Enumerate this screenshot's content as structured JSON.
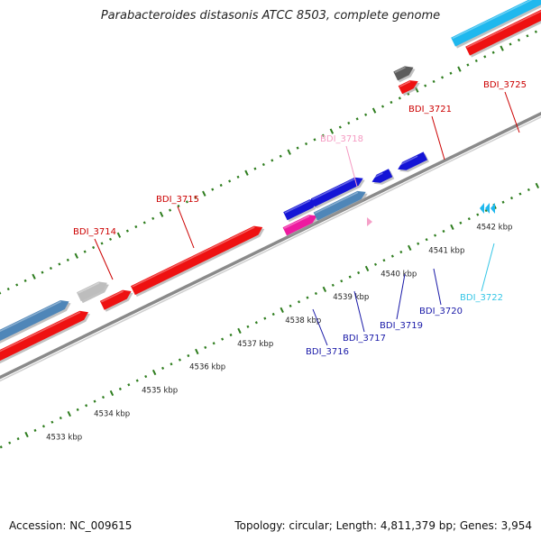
{
  "title": "Parabacteroides distasonis ATCC 8503, complete genome",
  "footer": {
    "accession": "Accession: NC_009615",
    "summary": "Topology: circular; Length: 4,811,379 bp; Genes: 3,954"
  },
  "scale": {
    "unit": "kbp",
    "ticks": [
      {
        "label": "4533 kbp"
      },
      {
        "label": "4534 kbp"
      },
      {
        "label": "4535 kbp"
      },
      {
        "label": "4536 kbp"
      },
      {
        "label": "4537 kbp"
      },
      {
        "label": "4538 kbp"
      },
      {
        "label": "4539 kbp"
      },
      {
        "label": "4540 kbp"
      },
      {
        "label": "4541 kbp"
      },
      {
        "label": "4542 kbp"
      }
    ]
  },
  "colors": {
    "backbone": "#8a8a8a",
    "tick_green": "#2e7d1e",
    "cds_red": "#ee1111",
    "cds_steelblue": "#4f86b8",
    "cds_blue": "#1414d6",
    "cds_gray": "#bdbdbd",
    "cds_darkgray": "#5c5c5c",
    "cds_magenta": "#ee1aa0",
    "cds_cyan": "#1fb8ee",
    "cds_pink": "#f5a0c8",
    "label_red": "#cc0000",
    "label_blue": "#1a1aa8",
    "label_cyan": "#35c6e6",
    "label_pink": "#f59ac2"
  },
  "genes": [
    {
      "id": "BDI_3714",
      "label": "BDI_3714",
      "color": "label_red"
    },
    {
      "id": "BDI_3715",
      "label": "BDI_3715",
      "color": "label_red"
    },
    {
      "id": "BDI_3716",
      "label": "BDI_3716",
      "color": "label_blue"
    },
    {
      "id": "BDI_3717",
      "label": "BDI_3717",
      "color": "label_blue"
    },
    {
      "id": "BDI_3718",
      "label": "BDI_3718",
      "color": "label_pink"
    },
    {
      "id": "BDI_3719",
      "label": "BDI_3719",
      "color": "label_blue"
    },
    {
      "id": "BDI_3720",
      "label": "BDI_3720",
      "color": "label_blue"
    },
    {
      "id": "BDI_3721",
      "label": "BDI_3721",
      "color": "label_red"
    },
    {
      "id": "BDI_3722",
      "label": "BDI_3722",
      "color": "label_cyan"
    },
    {
      "id": "BDI_3725",
      "label": "BDI_3725",
      "color": "label_red"
    }
  ]
}
